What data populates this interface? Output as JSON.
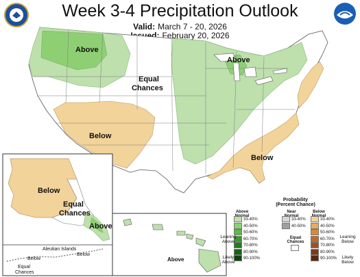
{
  "header": {
    "title": "Week 3-4 Precipitation Outlook",
    "valid_label": "Valid:",
    "valid_value": "March 7 - 20, 2026",
    "issued_label": "Issued:",
    "issued_value": "February 20, 2026"
  },
  "colors": {
    "above_light": "#bde0ad",
    "above_mid": "#8fcf74",
    "below_light": "#f2d39a",
    "below_mid": "#e6ae5c",
    "equal": "#ffffff",
    "near": "#b5b5b5",
    "border": "#555555"
  },
  "map_labels": {
    "nw_above": "Above",
    "ne_above": "Above",
    "central_equal_1": "Equal",
    "central_equal_2": "Chances",
    "sw_below": "Below",
    "se_below": "Below",
    "ak_below": "Below",
    "ak_equal_1": "Equal",
    "ak_equal_2": "Chances",
    "ak_above": "Above",
    "aleutian_title": "Aleutian Islands",
    "aleutian_below_left": "Below",
    "aleutian_below_right": "Below",
    "aleutian_equal_1": "Equal",
    "aleutian_equal_2": "Chances",
    "hi_above": "Above"
  },
  "legend": {
    "title_1": "Probability",
    "title_2": "(Percent Chance)",
    "above_header_1": "Above",
    "above_header_2": "Normal",
    "near_header_1": "Near",
    "near_header_2": "Normal",
    "below_header_1": "Below",
    "below_header_2": "Normal",
    "equal_label_1": "Equal",
    "equal_label_2": "Chances",
    "leaning_above_1": "Leaning",
    "leaning_above_2": "Above",
    "likely_above_1": "Likely",
    "likely_above_2": "Above",
    "leaning_below_1": "Leaning",
    "leaning_below_2": "Below",
    "likely_below_1": "Likely",
    "likely_below_2": "Below",
    "above_rows": [
      {
        "label": "33-40%",
        "color": "#bde0ad"
      },
      {
        "label": "40-50%",
        "color": "#8fcf74"
      },
      {
        "label": "50-60%",
        "color": "#5cb84a"
      },
      {
        "label": "60-70%",
        "color": "#3a9a30"
      },
      {
        "label": "70-80%",
        "color": "#217d1f"
      },
      {
        "label": "80-90%",
        "color": "#156214"
      },
      {
        "label": "90-100%",
        "color": "#0b450b"
      }
    ],
    "near_rows": [
      {
        "label": "33-40%",
        "color": "#d6d6d6"
      },
      {
        "label": "40-50%",
        "color": "#a0a0a0"
      }
    ],
    "below_rows": [
      {
        "label": "33-40%",
        "color": "#f2d39a"
      },
      {
        "label": "40-50%",
        "color": "#e6ae5c"
      },
      {
        "label": "50-60%",
        "color": "#d88a3a"
      },
      {
        "label": "60-70%",
        "color": "#bf6a2c"
      },
      {
        "label": "70-80%",
        "color": "#a04f22"
      },
      {
        "label": "80-90%",
        "color": "#7e3a18"
      },
      {
        "label": "90-100%",
        "color": "#5a260f"
      }
    ]
  }
}
